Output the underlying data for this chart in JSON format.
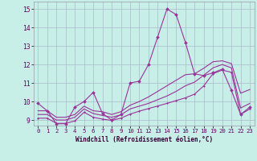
{
  "xlabel": "Windchill (Refroidissement éolien,°C)",
  "bg_color": "#c8eee8",
  "grid_color": "#aabbcc",
  "line_color": "#993399",
  "xlim": [
    -0.5,
    23.5
  ],
  "ylim": [
    8.7,
    15.4
  ],
  "yticks": [
    9,
    10,
    11,
    12,
    13,
    14,
    15
  ],
  "xticks": [
    0,
    1,
    2,
    3,
    4,
    5,
    6,
    7,
    8,
    9,
    10,
    11,
    12,
    13,
    14,
    15,
    16,
    17,
    18,
    19,
    20,
    21,
    22,
    23
  ],
  "line1_x": [
    0,
    1,
    2,
    3,
    4,
    5,
    6,
    7,
    8,
    9,
    10,
    11,
    12,
    13,
    14,
    15,
    16,
    17,
    18,
    19,
    20,
    21,
    22,
    23
  ],
  "line1_y": [
    9.9,
    9.5,
    8.8,
    8.8,
    9.7,
    10.0,
    10.5,
    9.35,
    9.0,
    9.3,
    11.0,
    11.1,
    12.0,
    13.5,
    15.0,
    14.7,
    13.2,
    11.5,
    11.4,
    11.55,
    11.75,
    10.6,
    9.3,
    9.7
  ],
  "line2_x": [
    0,
    1,
    2,
    3,
    4,
    5,
    6,
    7,
    8,
    9,
    10,
    11,
    12,
    13,
    14,
    15,
    16,
    17,
    18,
    19,
    20,
    21,
    22,
    23
  ],
  "line2_y": [
    9.5,
    9.5,
    9.15,
    9.15,
    9.3,
    9.75,
    9.5,
    9.45,
    9.3,
    9.45,
    9.8,
    10.0,
    10.25,
    10.55,
    10.85,
    11.15,
    11.45,
    11.5,
    11.8,
    12.15,
    12.2,
    12.05,
    10.45,
    10.65
  ],
  "line3_x": [
    0,
    1,
    2,
    3,
    4,
    5,
    6,
    7,
    8,
    9,
    10,
    11,
    12,
    13,
    14,
    15,
    16,
    17,
    18,
    19,
    20,
    21,
    22,
    23
  ],
  "line3_y": [
    9.3,
    9.3,
    9.0,
    9.0,
    9.15,
    9.6,
    9.35,
    9.25,
    9.15,
    9.28,
    9.6,
    9.75,
    9.9,
    10.1,
    10.3,
    10.55,
    10.85,
    11.05,
    11.42,
    11.82,
    12.0,
    11.82,
    9.65,
    9.9
  ],
  "line4_x": [
    0,
    1,
    2,
    3,
    4,
    5,
    6,
    7,
    8,
    9,
    10,
    11,
    12,
    13,
    14,
    15,
    16,
    17,
    18,
    19,
    20,
    21,
    22,
    23
  ],
  "line4_y": [
    9.1,
    9.1,
    8.82,
    8.82,
    8.95,
    9.42,
    9.15,
    9.05,
    8.98,
    9.1,
    9.32,
    9.48,
    9.62,
    9.76,
    9.9,
    10.05,
    10.2,
    10.4,
    10.85,
    11.5,
    11.7,
    11.58,
    9.3,
    9.6
  ]
}
